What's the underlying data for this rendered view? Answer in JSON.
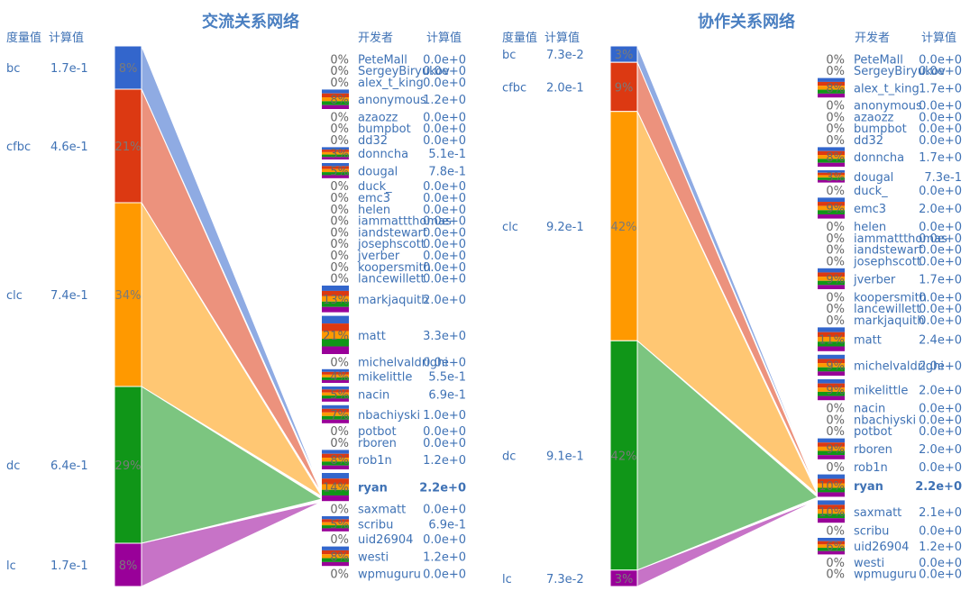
{
  "colors": {
    "bc": "#3366cc",
    "cfbc": "#dc3912",
    "clc": "#ff9900",
    "dc": "#109618",
    "lc": "#990099"
  },
  "chart_data": [
    {
      "type": "bar",
      "title": "交流关系网络",
      "metric_header": "度量值",
      "value_header": "计算值",
      "dev_header": "开发者",
      "dev_value_header": "计算值",
      "highlight": "ryan",
      "metrics": [
        {
          "key": "bc",
          "label": "bc",
          "value_text": "1.7e-1",
          "share": 8,
          "pct_text": "8%"
        },
        {
          "key": "cfbc",
          "label": "cfbc",
          "value_text": "4.6e-1",
          "share": 21,
          "pct_text": "21%"
        },
        {
          "key": "clc",
          "label": "clc",
          "value_text": "7.4e-1",
          "share": 34,
          "pct_text": "34%"
        },
        {
          "key": "dc",
          "label": "dc",
          "value_text": "6.4e-1",
          "share": 29,
          "pct_text": "29%"
        },
        {
          "key": "lc",
          "label": "lc",
          "value_text": "1.7e-1",
          "share": 8,
          "pct_text": "8%"
        }
      ],
      "developers": [
        {
          "name": "PeteMall",
          "pct": "0%",
          "value": "0.0e+0",
          "share": 0
        },
        {
          "name": "SergeyBiryukov",
          "pct": "0%",
          "value": "0.0e+0",
          "share": 0
        },
        {
          "name": "alex_t_king",
          "pct": "0%",
          "value": "0.0e+0",
          "share": 0
        },
        {
          "name": "anonymous",
          "pct": "8%",
          "value": "1.2e+0",
          "share": 8
        },
        {
          "name": "azaozz",
          "pct": "0%",
          "value": "0.0e+0",
          "share": 0
        },
        {
          "name": "bumpbot",
          "pct": "0%",
          "value": "0.0e+0",
          "share": 0
        },
        {
          "name": "dd32",
          "pct": "0%",
          "value": "0.0e+0",
          "share": 0
        },
        {
          "name": "donncha",
          "pct": "3%",
          "value": "5.1e-1",
          "share": 3
        },
        {
          "name": "dougal",
          "pct": "5%",
          "value": "7.8e-1",
          "share": 5
        },
        {
          "name": "duck_",
          "pct": "0%",
          "value": "0.0e+0",
          "share": 0
        },
        {
          "name": "emc3",
          "pct": "0%",
          "value": "0.0e+0",
          "share": 0
        },
        {
          "name": "helen",
          "pct": "0%",
          "value": "0.0e+0",
          "share": 0
        },
        {
          "name": "iammattthomas",
          "pct": "0%",
          "value": "0.0e+0",
          "share": 0
        },
        {
          "name": "iandstewart",
          "pct": "0%",
          "value": "0.0e+0",
          "share": 0
        },
        {
          "name": "josephscott",
          "pct": "0%",
          "value": "0.0e+0",
          "share": 0
        },
        {
          "name": "jverber",
          "pct": "0%",
          "value": "0.0e+0",
          "share": 0
        },
        {
          "name": "koopersmith",
          "pct": "0%",
          "value": "0.0e+0",
          "share": 0
        },
        {
          "name": "lancewillett",
          "pct": "0%",
          "value": "0.0e+0",
          "share": 0
        },
        {
          "name": "markjaquith",
          "pct": "13%",
          "value": "2.0e+0",
          "share": 13
        },
        {
          "name": "matt",
          "pct": "21%",
          "value": "3.3e+0",
          "share": 21
        },
        {
          "name": "michelvaldrighi",
          "pct": "0%",
          "value": "0.0e+0",
          "share": 0
        },
        {
          "name": "mikelittle",
          "pct": "4%",
          "value": "5.5e-1",
          "share": 4
        },
        {
          "name": "nacin",
          "pct": "5%",
          "value": "6.9e-1",
          "share": 5
        },
        {
          "name": "nbachiyski",
          "pct": "7%",
          "value": "1.0e+0",
          "share": 7
        },
        {
          "name": "potbot",
          "pct": "0%",
          "value": "0.0e+0",
          "share": 0
        },
        {
          "name": "rboren",
          "pct": "0%",
          "value": "0.0e+0",
          "share": 0
        },
        {
          "name": "rob1n",
          "pct": "8%",
          "value": "1.2e+0",
          "share": 8
        },
        {
          "name": "ryan",
          "pct": "14%",
          "value": "2.2e+0",
          "share": 14
        },
        {
          "name": "saxmatt",
          "pct": "0%",
          "value": "0.0e+0",
          "share": 0
        },
        {
          "name": "scribu",
          "pct": "5%",
          "value": "6.9e-1",
          "share": 5
        },
        {
          "name": "uid26904",
          "pct": "0%",
          "value": "0.0e+0",
          "share": 0
        },
        {
          "name": "westi",
          "pct": "8%",
          "value": "1.2e+0",
          "share": 8
        },
        {
          "name": "wpmuguru",
          "pct": "0%",
          "value": "0.0e+0",
          "share": 0
        }
      ]
    },
    {
      "type": "bar",
      "title": "协作关系网络",
      "metric_header": "度量值",
      "value_header": "计算值",
      "dev_header": "开发者",
      "dev_value_header": "计算值",
      "highlight": "ryan",
      "metrics": [
        {
          "key": "bc",
          "label": "bc",
          "value_text": "7.3e-2",
          "share": 3,
          "pct_text": "3%"
        },
        {
          "key": "cfbc",
          "label": "cfbc",
          "value_text": "2.0e-1",
          "share": 9,
          "pct_text": "9%"
        },
        {
          "key": "clc",
          "label": "clc",
          "value_text": "9.2e-1",
          "share": 42,
          "pct_text": "42%"
        },
        {
          "key": "dc",
          "label": "dc",
          "value_text": "9.1e-1",
          "share": 42,
          "pct_text": "42%"
        },
        {
          "key": "lc",
          "label": "lc",
          "value_text": "7.3e-2",
          "share": 3,
          "pct_text": "3%"
        }
      ],
      "developers": [
        {
          "name": "PeteMall",
          "pct": "0%",
          "value": "0.0e+0",
          "share": 0
        },
        {
          "name": "SergeyBiryukov",
          "pct": "0%",
          "value": "0.0e+0",
          "share": 0
        },
        {
          "name": "alex_t_king",
          "pct": "8%",
          "value": "1.7e+0",
          "share": 8
        },
        {
          "name": "anonymous",
          "pct": "0%",
          "value": "0.0e+0",
          "share": 0
        },
        {
          "name": "azaozz",
          "pct": "0%",
          "value": "0.0e+0",
          "share": 0
        },
        {
          "name": "bumpbot",
          "pct": "0%",
          "value": "0.0e+0",
          "share": 0
        },
        {
          "name": "dd32",
          "pct": "0%",
          "value": "0.0e+0",
          "share": 0
        },
        {
          "name": "donncha",
          "pct": "8%",
          "value": "1.7e+0",
          "share": 8
        },
        {
          "name": "dougal",
          "pct": "3%",
          "value": "7.3e-1",
          "share": 3
        },
        {
          "name": "duck_",
          "pct": "0%",
          "value": "0.0e+0",
          "share": 0
        },
        {
          "name": "emc3",
          "pct": "9%",
          "value": "2.0e+0",
          "share": 9
        },
        {
          "name": "helen",
          "pct": "0%",
          "value": "0.0e+0",
          "share": 0
        },
        {
          "name": "iammattthomas",
          "pct": "0%",
          "value": "0.0e+0",
          "share": 0
        },
        {
          "name": "iandstewart",
          "pct": "0%",
          "value": "0.0e+0",
          "share": 0
        },
        {
          "name": "josephscott",
          "pct": "0%",
          "value": "0.0e+0",
          "share": 0
        },
        {
          "name": "jverber",
          "pct": "9%",
          "value": "1.7e+0",
          "share": 9
        },
        {
          "name": "koopersmith",
          "pct": "0%",
          "value": "0.0e+0",
          "share": 0
        },
        {
          "name": "lancewillett",
          "pct": "0%",
          "value": "0.0e+0",
          "share": 0
        },
        {
          "name": "markjaquith",
          "pct": "0%",
          "value": "0.0e+0",
          "share": 0
        },
        {
          "name": "matt",
          "pct": "11%",
          "value": "2.4e+0",
          "share": 11
        },
        {
          "name": "michelvaldrighi",
          "pct": "9%",
          "value": "2.0e+0",
          "share": 9
        },
        {
          "name": "mikelittle",
          "pct": "9%",
          "value": "2.0e+0",
          "share": 9
        },
        {
          "name": "nacin",
          "pct": "0%",
          "value": "0.0e+0",
          "share": 0
        },
        {
          "name": "nbachiyski",
          "pct": "0%",
          "value": "0.0e+0",
          "share": 0
        },
        {
          "name": "potbot",
          "pct": "0%",
          "value": "0.0e+0",
          "share": 0
        },
        {
          "name": "rboren",
          "pct": "9%",
          "value": "2.0e+0",
          "share": 9
        },
        {
          "name": "rob1n",
          "pct": "0%",
          "value": "0.0e+0",
          "share": 0
        },
        {
          "name": "ryan",
          "pct": "10%",
          "value": "2.2e+0",
          "share": 10
        },
        {
          "name": "saxmatt",
          "pct": "10%",
          "value": "2.1e+0",
          "share": 10
        },
        {
          "name": "scribu",
          "pct": "0%",
          "value": "0.0e+0",
          "share": 0
        },
        {
          "name": "uid26904",
          "pct": "6%",
          "value": "1.2e+0",
          "share": 6
        },
        {
          "name": "westi",
          "pct": "0%",
          "value": "0.0e+0",
          "share": 0
        },
        {
          "name": "wpmuguru",
          "pct": "0%",
          "value": "0.0e+0",
          "share": 0
        }
      ]
    }
  ]
}
